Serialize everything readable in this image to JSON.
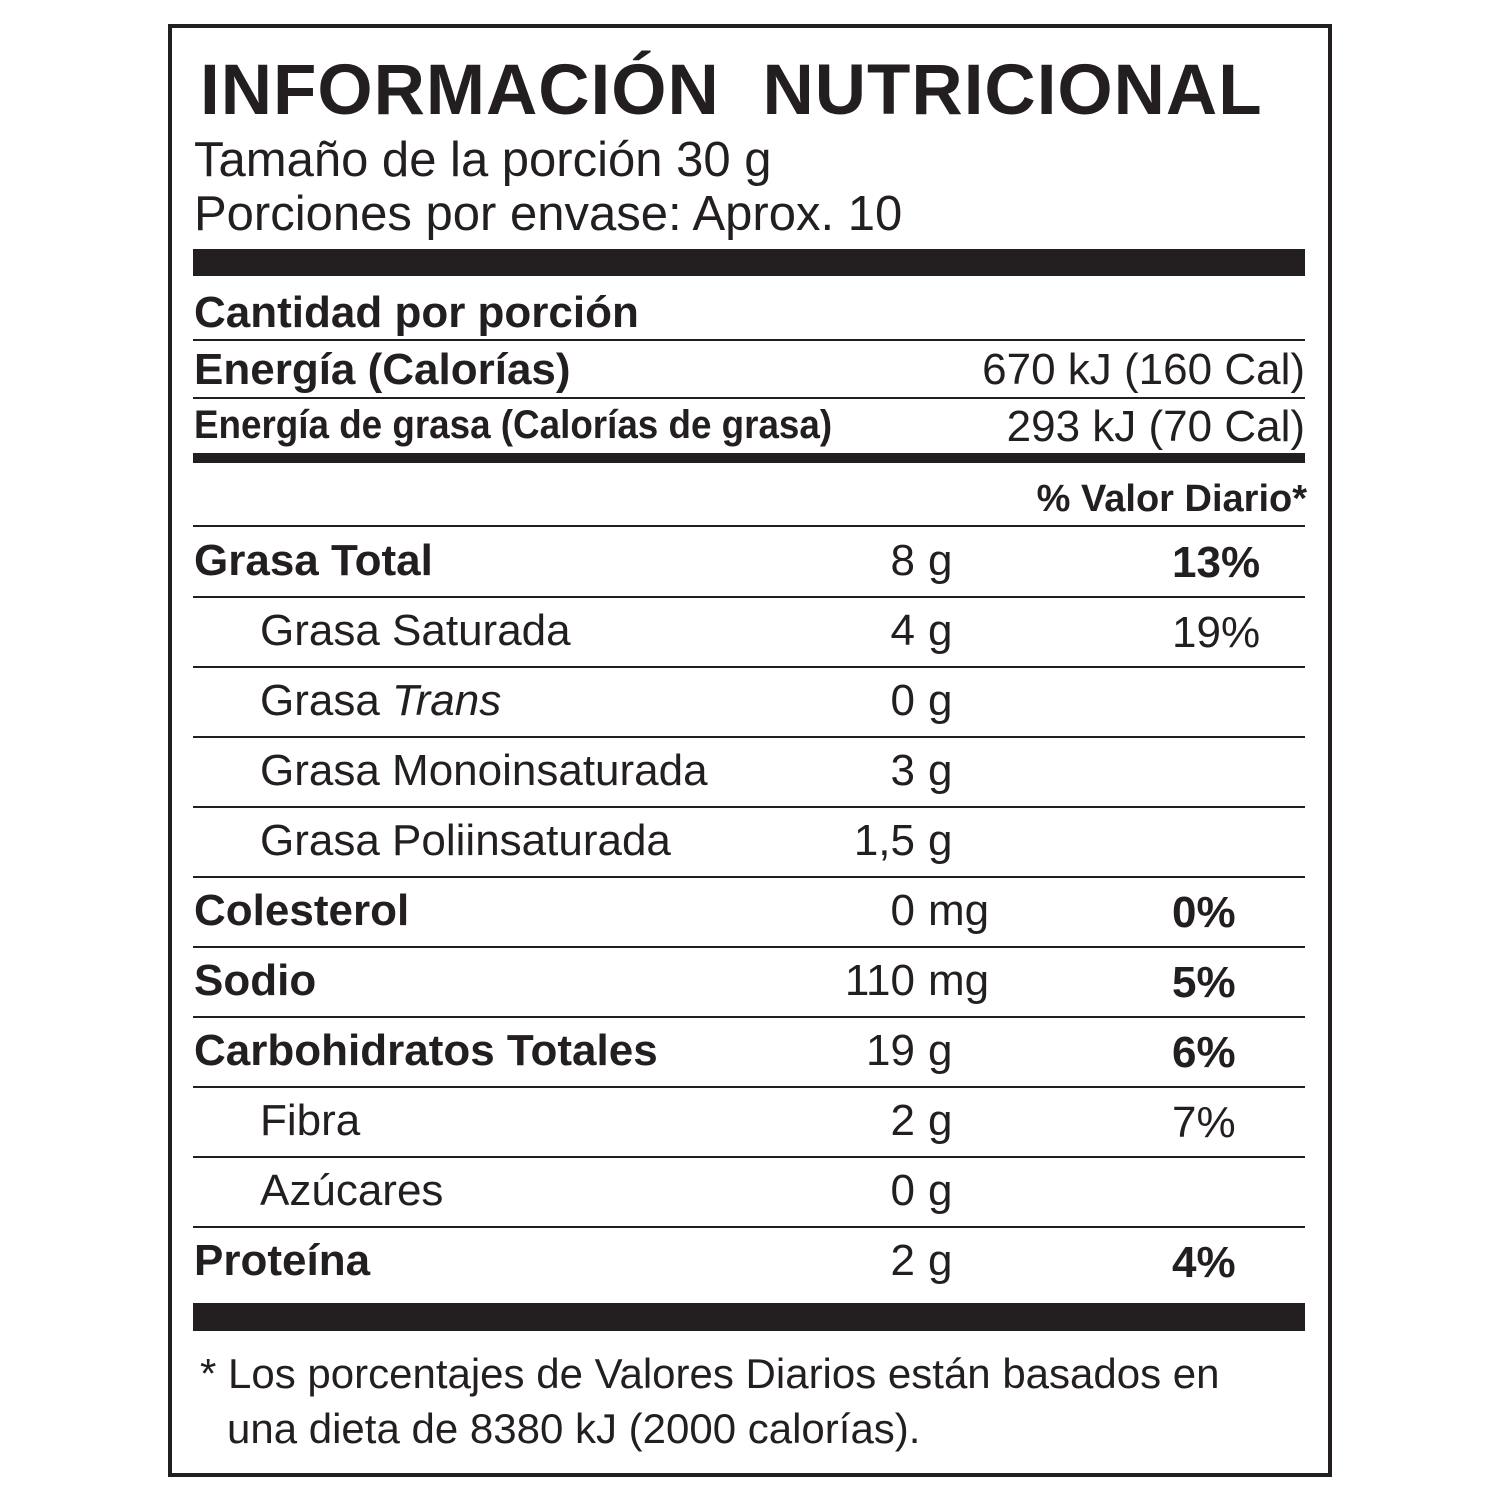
{
  "title": "INFORMACIÓN NUTRICIONAL",
  "serving_size": "Tamaño de la porción  30 g",
  "servings_per_container": "Porciones por envase: Aprox. 10",
  "amount_per_serving": "Cantidad por porción",
  "energy": {
    "label": "Energía (Calorías)",
    "value": "670 kJ (160 Cal)"
  },
  "energy_fat": {
    "label": "Energía de grasa (Calorías de grasa)",
    "value": "293 kJ (70 Cal)"
  },
  "dv_header": "% Valor Diario*",
  "rows": [
    {
      "label": "Grasa Total",
      "num": "8",
      "unit": "g",
      "pct": "13%",
      "bold": true,
      "indent": false
    },
    {
      "label": "Grasa Saturada",
      "num": "4",
      "unit": "g",
      "pct": "19%",
      "bold": false,
      "indent": true
    },
    {
      "label": "Grasa ",
      "label_italic": "Trans",
      "num": "0",
      "unit": "g",
      "pct": "",
      "bold": false,
      "indent": true
    },
    {
      "label": "Grasa Monoinsaturada",
      "num": "3",
      "unit": "g",
      "pct": "",
      "bold": false,
      "indent": true
    },
    {
      "label": "Grasa Poliinsaturada",
      "num": "1,5",
      "unit": "g",
      "pct": "",
      "bold": false,
      "indent": true
    },
    {
      "label": "Colesterol",
      "num": "0",
      "unit": "mg",
      "pct": "0%",
      "bold": true,
      "indent": false
    },
    {
      "label": "Sodio",
      "num": "110",
      "unit": "mg",
      "pct": "5%",
      "bold": true,
      "indent": false
    },
    {
      "label": "Carbohidratos Totales",
      "num": "19",
      "unit": "g",
      "pct": "6%",
      "bold": true,
      "indent": false
    },
    {
      "label": "Fibra",
      "num": "2",
      "unit": "g",
      "pct": "7%",
      "bold": false,
      "indent": true
    },
    {
      "label": "Azúcares",
      "num": "0",
      "unit": "g",
      "pct": "",
      "bold": false,
      "indent": true
    },
    {
      "label": "Proteína",
      "num": "2",
      "unit": "g",
      "pct": "4%",
      "bold": true,
      "indent": false
    }
  ],
  "footnote_line1": "* Los porcentajes de Valores Diarios están basados en",
  "footnote_line2": "una dieta de 8380 kJ (2000 calorías)."
}
